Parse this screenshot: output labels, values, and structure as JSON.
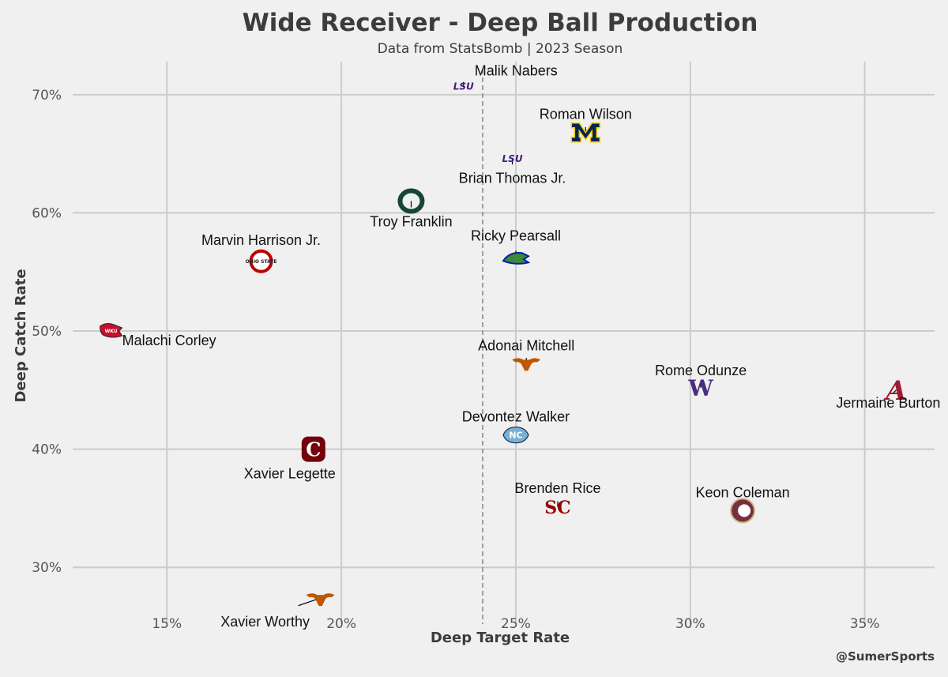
{
  "chart_data": {
    "type": "scatter",
    "title": "Wide Receiver - Deep Ball Production",
    "subtitle": "Data from StatsBomb | 2023 Season",
    "xlabel": "Deep Target Rate",
    "ylabel": "Deep Catch Rate",
    "credit": "@SumerSports",
    "xlim": [
      12.3,
      37.0
    ],
    "ylim": [
      25.2,
      72.8
    ],
    "xticks": [
      15,
      20,
      25,
      30,
      35
    ],
    "yticks": [
      30,
      40,
      50,
      60,
      70
    ],
    "x_tick_labels": [
      "15%",
      "20%",
      "25%",
      "30%",
      "35%"
    ],
    "y_tick_labels": [
      "30%",
      "40%",
      "50%",
      "60%",
      "70%"
    ],
    "reference_line_x": 24.05,
    "grid": true,
    "points": [
      {
        "player": "Malik Nabers",
        "school": "LSU",
        "logo": "lsu-logo",
        "color": "#461d7c",
        "x": 23.5,
        "y": 70.7
      },
      {
        "player": "Roman Wilson",
        "school": "Michigan",
        "logo": "michigan-logo",
        "color": "#00274c",
        "x": 27.0,
        "y": 66.8
      },
      {
        "player": "Brian Thomas Jr.",
        "school": "LSU",
        "logo": "lsu-logo",
        "color": "#461d7c",
        "x": 24.9,
        "y": 64.6
      },
      {
        "player": "Troy Franklin",
        "school": "Oregon",
        "logo": "oregon-logo",
        "color": "#154733",
        "x": 22.0,
        "y": 61.0
      },
      {
        "player": "Ricky Pearsall",
        "school": "Florida",
        "logo": "florida-logo",
        "color": "#0021a5",
        "x": 25.0,
        "y": 56.2
      },
      {
        "player": "Marvin Harrison Jr.",
        "school": "Ohio State",
        "logo": "ohio-state-logo",
        "color": "#bb0000",
        "x": 17.7,
        "y": 55.9
      },
      {
        "player": "Malachi Corley",
        "school": "Western Kentucky",
        "logo": "wku-logo",
        "color": "#c8102e",
        "x": 13.4,
        "y": 50.0
      },
      {
        "player": "Adonai Mitchell",
        "school": "Texas",
        "logo": "texas-logo",
        "color": "#bf5700",
        "x": 25.3,
        "y": 47.3
      },
      {
        "player": "Rome Odunze",
        "school": "Washington",
        "logo": "washington-logo",
        "color": "#4b2e83",
        "x": 30.3,
        "y": 45.2
      },
      {
        "player": "Jermaine Burton",
        "school": "Alabama",
        "logo": "alabama-logo",
        "color": "#9e1b32",
        "x": 35.9,
        "y": 45.0
      },
      {
        "player": "Devontez Walker",
        "school": "North Carolina",
        "logo": "unc-logo",
        "color": "#7bafd4",
        "x": 25.0,
        "y": 41.2
      },
      {
        "player": "Xavier Legette",
        "school": "South Carolina",
        "logo": "south-carolina-logo",
        "color": "#73000a",
        "x": 19.2,
        "y": 40.0
      },
      {
        "player": "Brenden Rice",
        "school": "USC",
        "logo": "usc-logo",
        "color": "#990000",
        "x": 26.2,
        "y": 35.1
      },
      {
        "player": "Keon Coleman",
        "school": "Florida State",
        "logo": "florida-state-logo",
        "color": "#782f40",
        "x": 31.5,
        "y": 34.8
      },
      {
        "player": "Xavier Worthy",
        "school": "Texas",
        "logo": "texas-logo",
        "color": "#bf5700",
        "x": 19.4,
        "y": 27.4
      }
    ]
  }
}
